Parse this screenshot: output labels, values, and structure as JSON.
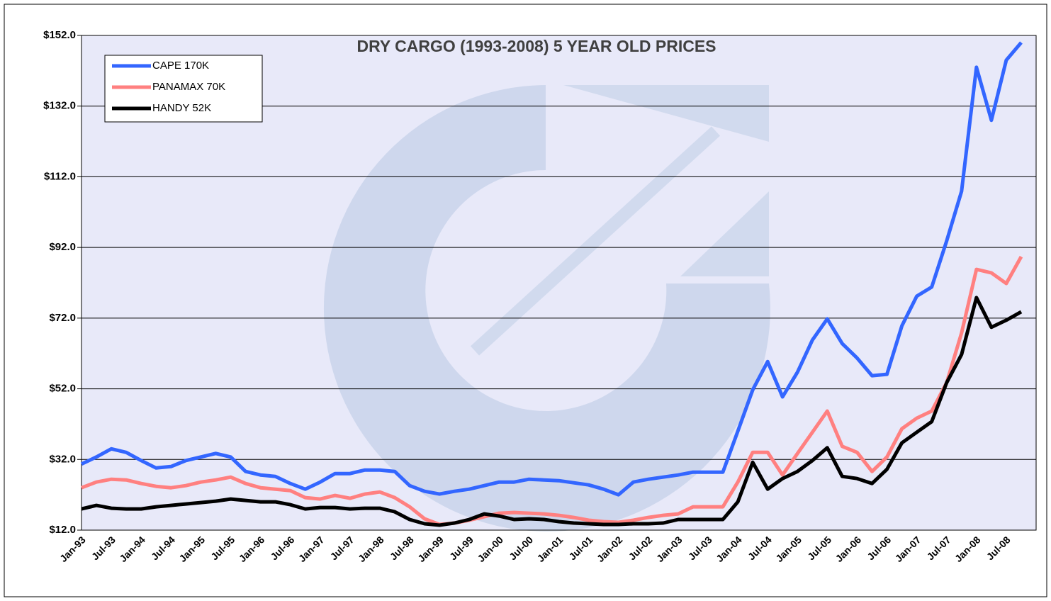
{
  "chart_data": {
    "type": "line",
    "title": "DRY CARGO (1993-2008) 5 YEAR OLD PRICES",
    "categories": [
      "Jan-93",
      null,
      "Jul-93",
      null,
      "Jan-94",
      null,
      "Jul-94",
      null,
      "Jan-95",
      null,
      "Jul-95",
      null,
      "Jan-96",
      null,
      "Jul-96",
      null,
      "Jan-97",
      null,
      "Jul-97",
      null,
      "Jan-98",
      null,
      "Jul-98",
      null,
      "Jan-99",
      null,
      "Jul-99",
      null,
      "Jan-00",
      null,
      "Jul-00",
      null,
      "Jan-01",
      null,
      "Jul-01",
      null,
      "Jan-02",
      null,
      "Jul-02",
      null,
      "Jan-03",
      null,
      "Jul-03",
      null,
      "Jan-04",
      null,
      "Jul-04",
      null,
      "Jan-05",
      null,
      "Jul-05",
      null,
      "Jan-06",
      null,
      "Jul-06",
      null,
      "Jan-07",
      null,
      "Jul-07",
      null,
      "Jan-08",
      null,
      "Jul-08",
      null
    ],
    "series": [
      {
        "name": "CAPE 170K",
        "color": "#3366ff",
        "values": [
          30.7,
          32.7,
          35,
          34,
          31.7,
          29.6,
          30,
          31.7,
          32.7,
          33.7,
          32.7,
          28.6,
          27.6,
          27.2,
          25.2,
          23.6,
          25.6,
          28,
          28,
          29,
          29,
          28.6,
          24.6,
          23,
          22.2,
          23,
          23.6,
          24.6,
          25.6,
          25.6,
          26.4,
          26.2,
          26,
          25.4,
          24.8,
          23.6,
          22,
          25.6,
          26.4,
          27,
          27.6,
          28.4,
          28.4,
          28.4,
          40,
          51.7,
          59.7,
          49.7,
          56.7,
          65.8,
          71.8,
          64.8,
          60.7,
          55.7,
          56.1,
          69.8,
          78.2,
          80.8,
          93.8,
          107.9,
          143,
          128,
          145,
          150
        ]
      },
      {
        "name": "PANAMAX 70K",
        "color": "#ff8080",
        "values": [
          24,
          25.6,
          26.4,
          26.2,
          25.2,
          24.4,
          24,
          24.6,
          25.6,
          26.2,
          27,
          25.2,
          24,
          23.6,
          23.2,
          21.2,
          20.8,
          21.8,
          21,
          22.2,
          22.8,
          21.2,
          18.6,
          15.2,
          13.6,
          14,
          14.8,
          15.8,
          16.8,
          17,
          16.8,
          16.6,
          16.2,
          15.6,
          14.8,
          14.4,
          14.2,
          14.8,
          15.6,
          16.2,
          16.6,
          18.6,
          18.6,
          18.6,
          25.6,
          34,
          34,
          27.6,
          33.7,
          39.7,
          45.7,
          35.7,
          34,
          28.6,
          32.7,
          40.7,
          43.7,
          45.7,
          53.7,
          67.8,
          85.8,
          84.8,
          81.8,
          89.4
        ]
      },
      {
        "name": "HANDY 52K",
        "color": "#000000",
        "values": [
          18,
          19,
          18.2,
          18,
          18,
          18.6,
          19,
          19.4,
          19.8,
          20.2,
          20.8,
          20.4,
          20,
          20,
          19.2,
          18,
          18.4,
          18.4,
          18,
          18.2,
          18.2,
          17.2,
          15,
          13.8,
          13.4,
          14,
          15,
          16.6,
          16,
          15,
          15.2,
          15,
          14.4,
          14,
          13.8,
          13.6,
          13.6,
          13.8,
          13.8,
          14,
          15,
          15,
          15,
          15,
          20,
          31.2,
          23.6,
          26.6,
          28.6,
          31.7,
          35.3,
          27.2,
          26.6,
          25.2,
          29.2,
          36.7,
          39.7,
          42.7,
          53.7,
          61.7,
          77.8,
          69.4,
          71.4,
          73.8
        ]
      }
    ],
    "ylim": [
      12,
      152
    ],
    "yticks": [
      {
        "value": 12,
        "label": "$12.0"
      },
      {
        "value": 32,
        "label": "$32.0"
      },
      {
        "value": 52,
        "label": "$52.0"
      },
      {
        "value": 72,
        "label": "$72.0"
      },
      {
        "value": 92,
        "label": "$92.0"
      },
      {
        "value": 112,
        "label": "$112.0"
      },
      {
        "value": 132,
        "label": "$132.0"
      },
      {
        "value": 152,
        "label": "$152.0"
      }
    ],
    "grid": true,
    "legend": "upper left"
  }
}
